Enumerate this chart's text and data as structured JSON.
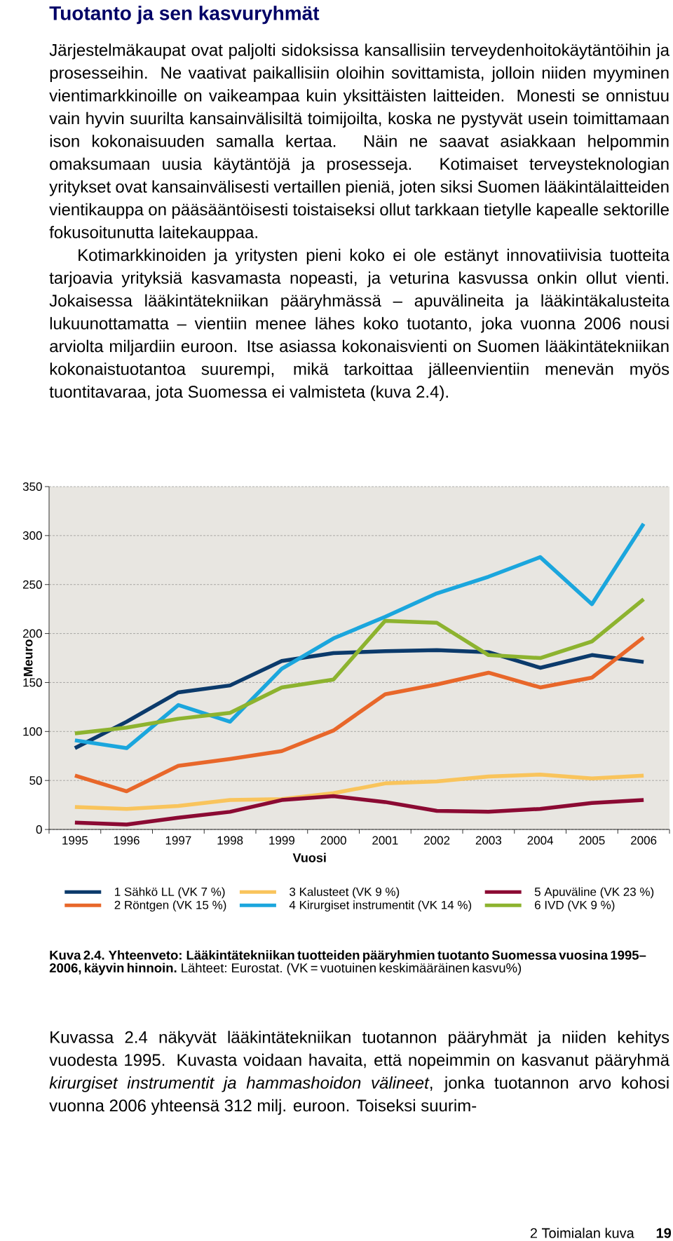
{
  "chart_data": {
    "type": "line",
    "title": "Kuva 2.4.  Yhteenveto: Lääkintätekniikan tuotteiden pääryhmien tuotanto Suomessa vuosina 1995–2006, käyvin hinnoin.",
    "xlabel": "Vuosi",
    "ylabel": "Meuro",
    "categories": [
      "1995",
      "1996",
      "1997",
      "1998",
      "1999",
      "2000",
      "2001",
      "2002",
      "2003",
      "2004",
      "2005",
      "2006"
    ],
    "series": [
      {
        "name": "1 Sähkö LL (VK 7 %)",
        "color": "#0b3a6b",
        "values": [
          83,
          110,
          140,
          147,
          172,
          180,
          182,
          183,
          181,
          165,
          178,
          171
        ]
      },
      {
        "name": "2 Röntgen (VK 15 %)",
        "color": "#e8672a",
        "values": [
          55,
          39,
          65,
          72,
          80,
          101,
          138,
          148,
          160,
          145,
          155,
          196
        ]
      },
      {
        "name": "3 Kalusteet (VK 9 %)",
        "color": "#f9c45c",
        "values": [
          23,
          21,
          24,
          30,
          31,
          37,
          47,
          49,
          54,
          56,
          52,
          55
        ]
      },
      {
        "name": "4 Kirurgiset instrumentit (VK 14 %)",
        "color": "#1ba6dd",
        "values": [
          91,
          83,
          127,
          110,
          164,
          195,
          217,
          241,
          258,
          278,
          230,
          312
        ]
      },
      {
        "name": "5 Apuväline (VK 23 %)",
        "color": "#8b0a33",
        "values": [
          7,
          5,
          12,
          18,
          30,
          34,
          28,
          19,
          18,
          21,
          27,
          30
        ]
      },
      {
        "name": "6 IVD (VK 9 %)",
        "color": "#8db32f",
        "values": [
          98,
          104,
          113,
          119,
          145,
          153,
          213,
          211,
          178,
          175,
          192,
          235
        ]
      }
    ],
    "ylim": [
      0,
      350
    ],
    "yticks": [
      0,
      50,
      100,
      150,
      200,
      250,
      300,
      350
    ],
    "grid": "y",
    "legend": "bottom",
    "annotations": [
      "Tuotanto ja sen kasvuryhmät",
      "Järjestelmäkaupat ovat paljolti sidoksissa kansallisiin terveydenhoitokäytäntöihin ja prosesseihin. Ne vaativat paikallisiin oloihin sovittamista, jolloin niiden myyminen vientimarkkinoille on vaikeampaa kuin yksittäisten laitteiden. Monesti se onnistuu vain hyvin suurilta kansainvälisiltä toimijoilta, koska ne pystyvät usein toimittamaan ison kokonaisuuden samalla kertaa. Näin ne saavat asiakkaan helpommin omaksumaan uusia käytäntöjä ja prosesseja. Kotimaiset terveysteknologian yritykset ovat kansainvälisesti vertaillen pieniä, joten siksi Suomen lääkintälaitteiden vientikauppa on pääsääntöisesti toistaiseksi ollut tarkkaan tietylle kapealle sektorille fokusoitunutta laitekauppaa.",
      "Kotimarkkinoiden ja yritysten pieni koko ei ole estänyt innovatiivisia tuotteita tarjoavia yrityksiä kasvamasta nopeasti, ja veturina kasvussa onkin ollut vienti. Jokaisessa lääkintätekniikan pääryhmässä – apuvälineita ja lääkintäkalusteita lukuunottamatta – vientiin menee lähes koko tuotanto, joka vuonna 2006 nousi arviolta miljardiin euroon. Itse asiassa kokonaisvienti on Suomen lääkintätekniikan kokonaistuotantoa suurempi, mikä tarkoittaa jälleenvientiin menevän myös tuontitavaraa, jota Suomessa ei valmisteta (kuva 2.4).",
      "Lähteet: Eurostat. (VK = vuotuinen keskimääräinen kasvu%)",
      "Kuvassa 2.4 näkyvät lääkintätekniikan tuotannon pääryhmät ja niiden kehitys vuodesta 1995. Kuvasta voidaan havaita, että nopeimmin on kasvanut pääryhmä *kirurgiset instrumentit ja hammashoidon välineet*, jonka tuotannon arvo kohosi vuonna 2006 yhteensä 312 milj. euroon. Toiseksi suurim-",
      "2 Toimialan kuva",
      "19"
    ]
  }
}
